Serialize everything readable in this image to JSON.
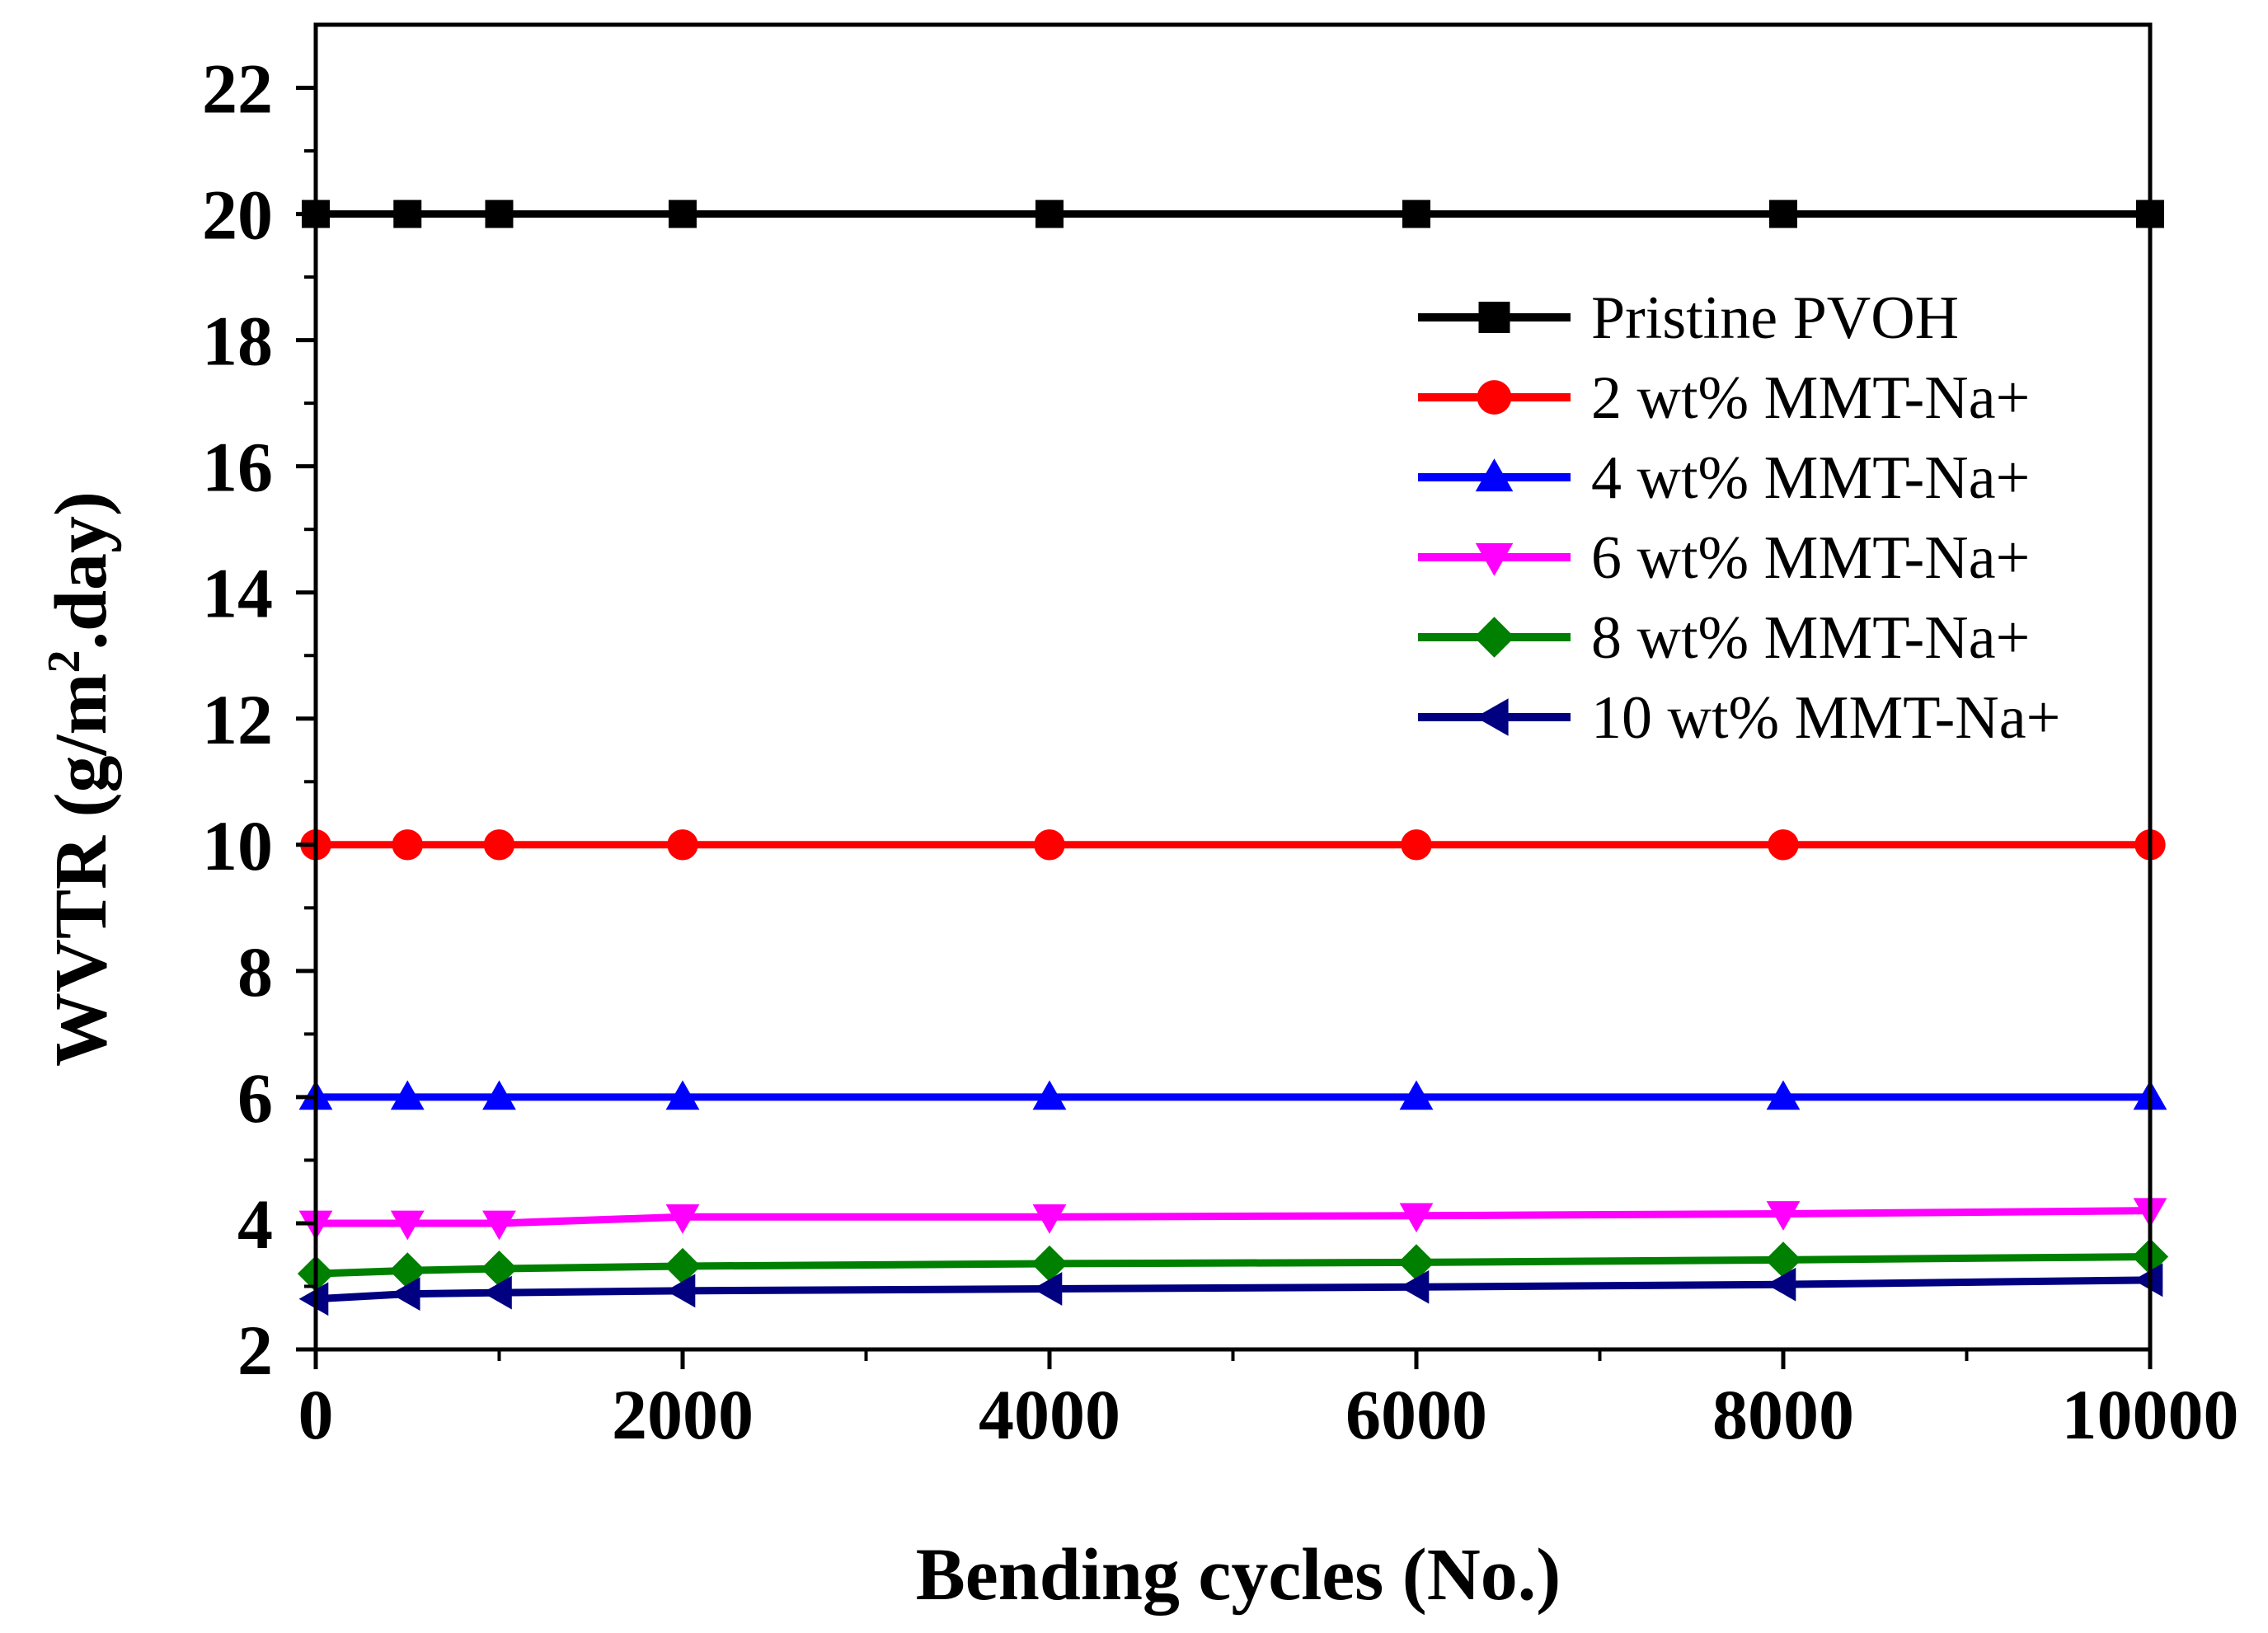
{
  "chart_data": {
    "type": "line",
    "title": "",
    "xlabel": "Bending cycles (No.)",
    "ylabel_main": "WVTR (g/m",
    "ylabel_sup": "2",
    "ylabel_tail": ".day)",
    "xlim": [
      0,
      10000
    ],
    "ylim": [
      2,
      23
    ],
    "xticks": [
      0,
      2000,
      4000,
      6000,
      8000,
      10000
    ],
    "xtick_labels": [
      "0",
      "2000",
      "4000",
      "6000",
      "8000",
      "10000"
    ],
    "xminor": [
      1000,
      3000,
      5000,
      7000,
      9000
    ],
    "yticks": [
      2,
      4,
      6,
      8,
      10,
      12,
      14,
      16,
      18,
      20,
      22
    ],
    "ytick_labels": [
      "2",
      "4",
      "6",
      "8",
      "10",
      "12",
      "14",
      "16",
      "18",
      "20",
      "22"
    ],
    "yminor": [
      3,
      5,
      7,
      9,
      11,
      13,
      15,
      17,
      19,
      21
    ],
    "grid": false,
    "legend_position": "upper-right",
    "x": [
      0,
      500,
      1000,
      2000,
      4000,
      6000,
      8000,
      10000
    ],
    "series": [
      {
        "name": "Pristine PVOH",
        "color": "#000000",
        "marker": "square",
        "values": [
          20,
          20,
          20,
          20,
          20,
          20,
          20,
          20
        ]
      },
      {
        "name": "2 wt% MMT-Na+",
        "color": "#ff0000",
        "marker": "circle",
        "values": [
          10,
          10,
          10,
          10,
          10,
          10,
          10,
          10
        ]
      },
      {
        "name": "4 wt% MMT-Na+",
        "color": "#0000ff",
        "marker": "triangle-up",
        "values": [
          6,
          6,
          6,
          6,
          6,
          6,
          6,
          6
        ]
      },
      {
        "name": "6 wt% MMT-Na+",
        "color": "#ff00ff",
        "marker": "triangle-down",
        "values": [
          4.0,
          4.0,
          4.0,
          4.1,
          4.1,
          4.12,
          4.15,
          4.2
        ]
      },
      {
        "name": "8 wt% MMT-Na+",
        "color": "#008000",
        "marker": "diamond",
        "values": [
          3.2,
          3.25,
          3.28,
          3.32,
          3.36,
          3.38,
          3.42,
          3.47
        ]
      },
      {
        "name": "10 wt% MMT-Na+",
        "color": "#000080",
        "marker": "triangle-left",
        "values": [
          2.8,
          2.88,
          2.9,
          2.93,
          2.96,
          2.99,
          3.03,
          3.1
        ]
      }
    ]
  }
}
